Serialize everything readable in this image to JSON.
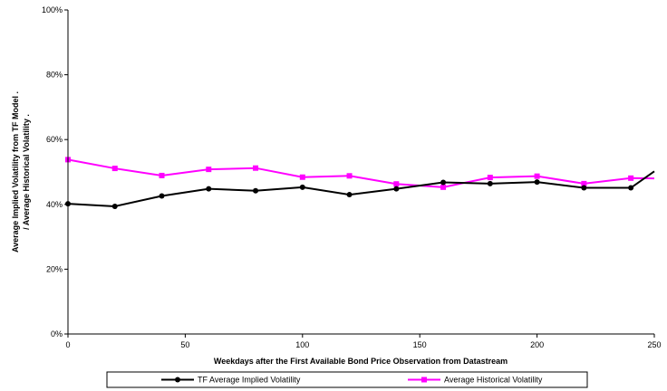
{
  "chart_data": {
    "type": "line",
    "title": "",
    "xlabel": "Weekdays after the First Available Bond Price Observation from Datastream",
    "ylabel_lines": [
      "Average Implied Volatility from TF Model   .",
      "  /  Average Historical Volatility   ."
    ],
    "xlim": [
      0,
      250
    ],
    "ylim": [
      0,
      100
    ],
    "x_ticks": [
      0,
      50,
      100,
      150,
      200,
      250
    ],
    "y_ticks": [
      0,
      20,
      40,
      60,
      80,
      100
    ],
    "y_tick_labels": [
      "0%",
      "20%",
      "40%",
      "60%",
      "80%",
      "100%"
    ],
    "grid": false,
    "legend_position": "bottom",
    "series": [
      {
        "name": "TF Average Implied Volatility",
        "color": "#000000",
        "marker": "circle",
        "x": [
          0,
          20,
          40,
          60,
          80,
          100,
          120,
          140,
          160,
          180,
          200,
          220,
          240,
          250
        ],
        "y": [
          40.2,
          39.4,
          42.6,
          44.8,
          44.2,
          45.3,
          43.0,
          44.8,
          46.8,
          46.4,
          46.9,
          45.1,
          45.1,
          50.2
        ],
        "marked": [
          true,
          true,
          true,
          true,
          true,
          true,
          true,
          true,
          true,
          true,
          true,
          true,
          true,
          false
        ]
      },
      {
        "name": "Average Historical Volatility",
        "color": "#ff00ff",
        "marker": "square",
        "x": [
          0,
          20,
          40,
          60,
          80,
          100,
          120,
          140,
          160,
          180,
          200,
          220,
          240,
          250
        ],
        "y": [
          53.8,
          51.1,
          48.9,
          50.8,
          51.2,
          48.4,
          48.8,
          46.3,
          45.3,
          48.3,
          48.7,
          46.4,
          48.1,
          48.0
        ],
        "marked": [
          true,
          true,
          true,
          true,
          true,
          true,
          true,
          true,
          true,
          true,
          true,
          true,
          true,
          false
        ]
      }
    ]
  }
}
